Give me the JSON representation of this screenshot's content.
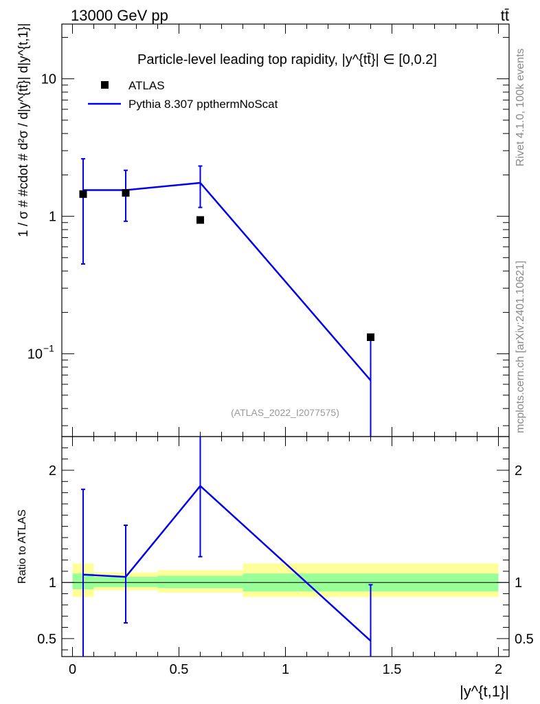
{
  "header": {
    "left": "13000 GeV pp",
    "right": "tt̄"
  },
  "side_labels": {
    "rivet": "Rivet 4.1.0,  100k events",
    "mcplots": "mcplots.cern.ch [arXiv:2401.10621]"
  },
  "colors": {
    "data": "#000000",
    "mc": "#0000ee",
    "band_inner": "#99ff99",
    "band_outer": "#ffff99"
  },
  "chart_data": [
    {
      "type": "scatter",
      "panel": "main",
      "title": "Particle-level leading top rapidity, |y^{tt̄}| ∈ [0,0.2]",
      "ylabel": "1 / σ # #cdot # d²σ / d|y^{tt̄}| d|y^{t,1}|",
      "xlabel": "",
      "yscale": "log",
      "xlim": [
        -0.05,
        2.05
      ],
      "ylim": [
        0.025,
        25
      ],
      "y_ticks": [
        {
          "value": 10,
          "label": "10"
        },
        {
          "value": 1,
          "label": "1"
        },
        {
          "value": 0.1,
          "label": "10",
          "sup": "−1"
        }
      ],
      "legend": [
        "ATLAS",
        "Pythia 8.307 ppthermNoScat"
      ],
      "legend_position": "top-left",
      "watermark": "(ATLAS_2022_I2077575)",
      "series": [
        {
          "name": "ATLAS",
          "style": "markers",
          "x": [
            0.05,
            0.25,
            0.6,
            1.4
          ],
          "y": [
            1.45,
            1.48,
            0.94,
            0.132
          ]
        },
        {
          "name": "Pythia 8.307 ppthermNoScat",
          "style": "line",
          "x": [
            0.05,
            0.25,
            0.6,
            1.4
          ],
          "y": [
            1.55,
            1.55,
            1.75,
            0.064
          ],
          "yerr_low": [
            0.45,
            0.92,
            1.16,
            0.02
          ],
          "yerr_high": [
            2.62,
            2.16,
            2.32,
            0.13
          ]
        }
      ]
    },
    {
      "type": "line",
      "panel": "ratio",
      "ylabel": "Ratio to ATLAS",
      "xlabel": "|y^{t,1}|",
      "xlim": [
        -0.05,
        2.05
      ],
      "ylim": [
        0.34,
        2.3
      ],
      "x_ticks": [
        "0",
        "0.5",
        "1",
        "1.5",
        "2"
      ],
      "x_tick_values": [
        0,
        0.5,
        1,
        1.5,
        2
      ],
      "y_ticks": [
        "0.5",
        "1",
        "2"
      ],
      "y_tick_values": [
        0.5,
        1,
        2
      ],
      "bands": {
        "edges": [
          0,
          0.1,
          0.4,
          0.8,
          2.0
        ],
        "inner_low": [
          0.94,
          0.96,
          0.95,
          0.92
        ],
        "inner_high": [
          1.08,
          1.05,
          1.06,
          1.08
        ],
        "outer_low": [
          0.87,
          0.93,
          0.91,
          0.87
        ],
        "outer_high": [
          1.17,
          1.09,
          1.11,
          1.17
        ]
      },
      "series": [
        {
          "name": "Pythia 8.307 ppthermNoScat",
          "x": [
            0.05,
            0.25,
            0.6,
            1.4
          ],
          "y": [
            1.07,
            1.05,
            1.86,
            0.48
          ],
          "yerr_low": [
            0.1,
            0.64,
            1.23,
            0.1
          ],
          "yerr_high": [
            1.83,
            1.51,
            2.3,
            0.98
          ]
        }
      ]
    }
  ]
}
